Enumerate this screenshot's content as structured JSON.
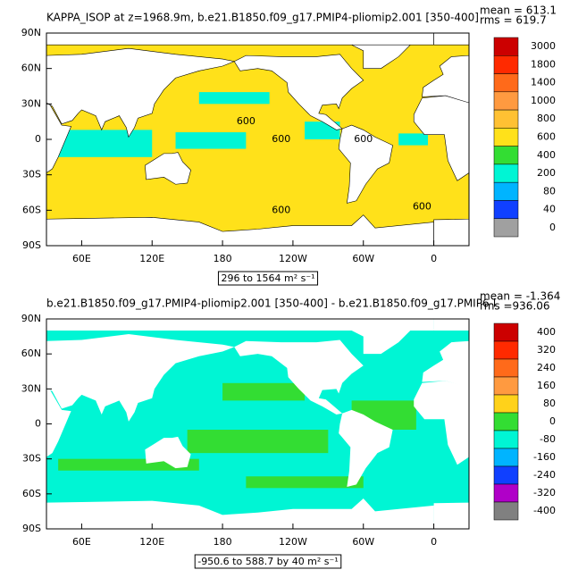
{
  "panels": [
    {
      "title": "KAPPA_ISOP at z=1968.9m, b.e21.B1850.f09_g17.PMIP4-pliomip2.001 [350-400]",
      "stats": [
        "mean = 613.1",
        "rms = 619.7"
      ],
      "lat_labels": [
        "90N",
        "60N",
        "30N",
        "0",
        "30S",
        "60S",
        "90S"
      ],
      "lon_labels": [
        "60E",
        "120E",
        "180",
        "120W",
        "60W",
        "0"
      ],
      "range_label": "296 to 1564 m² s⁻¹",
      "contour_labels": [
        "600",
        "600",
        "600",
        "600",
        "600"
      ],
      "colorbar": {
        "labels": [
          "3000",
          "1800",
          "1400",
          "1000",
          "800",
          "600",
          "400",
          "200",
          "80",
          "40",
          "0"
        ],
        "colors": [
          "#cc0000",
          "#ff2a00",
          "#ff6a1a",
          "#ff9a40",
          "#ffc133",
          "#ffe11a",
          "#33dd33",
          "#00f5d4",
          "#00b4ff",
          "#1040ff",
          "#a0a0a0"
        ]
      }
    },
    {
      "title": "b.e21.B1850.f09_g17.PMIP4-pliomip2.001 [350-400] - b.e21.B1850.f09_g17.PMIP6-l",
      "stats": [
        "mean = -1.364",
        "rms =936.06"
      ],
      "lat_labels": [
        "90N",
        "60N",
        "30N",
        "0",
        "30S",
        "60S",
        "90S"
      ],
      "lon_labels": [
        "60E",
        "120E",
        "180",
        "120W",
        "60W",
        "0"
      ],
      "range_label": "-950.6 to 588.7 by 40 m² s⁻¹",
      "colorbar": {
        "labels": [
          "400",
          "320",
          "240",
          "160",
          "80",
          "0",
          "-80",
          "-160",
          "-240",
          "-320",
          "-400"
        ],
        "colors": [
          "#cc0000",
          "#ff2a00",
          "#ff6a1a",
          "#ff9a40",
          "#ffd21a",
          "#33dd33",
          "#00f5d4",
          "#00b4ff",
          "#1040ff",
          "#b000c8",
          "#808080"
        ]
      }
    }
  ]
}
